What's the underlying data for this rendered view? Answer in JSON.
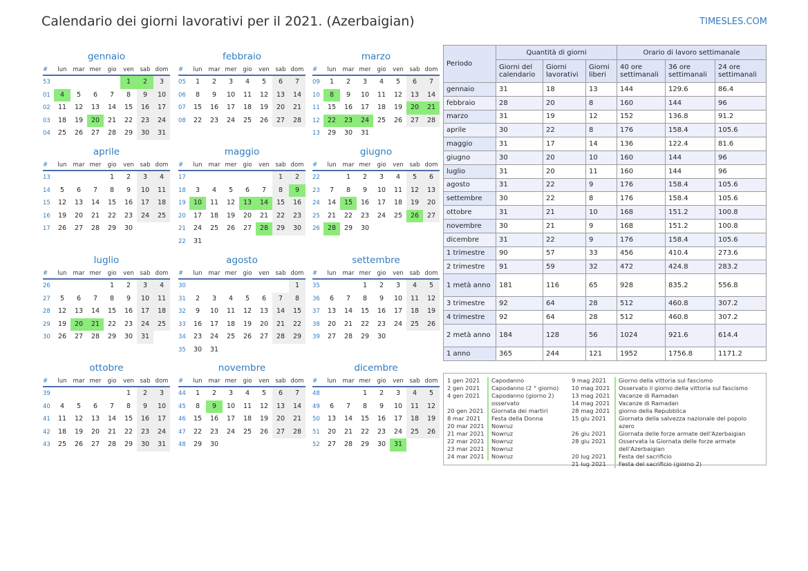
{
  "title": "Calendario dei giorni lavorativi per il 2021. (Azerbaigian)",
  "brand": "TIMESLES.COM",
  "weekdays": [
    "#",
    "lun",
    "mar",
    "mer",
    "gio",
    "ven",
    "sab",
    "dom"
  ],
  "months": [
    {
      "name": "gennaio",
      "weeks": [
        {
          "wk": "53",
          "days": [
            "",
            "",
            "",
            "",
            "1",
            "2",
            "3"
          ]
        },
        {
          "wk": "01",
          "days": [
            "4",
            "5",
            "6",
            "7",
            "8",
            "9",
            "10"
          ]
        },
        {
          "wk": "02",
          "days": [
            "11",
            "12",
            "13",
            "14",
            "15",
            "16",
            "17"
          ]
        },
        {
          "wk": "03",
          "days": [
            "18",
            "19",
            "20",
            "21",
            "22",
            "23",
            "24"
          ]
        },
        {
          "wk": "04",
          "days": [
            "25",
            "26",
            "27",
            "28",
            "29",
            "30",
            "31"
          ]
        }
      ],
      "holidays": [
        "1",
        "2",
        "4",
        "20"
      ]
    },
    {
      "name": "febbraio",
      "weeks": [
        {
          "wk": "05",
          "days": [
            "1",
            "2",
            "3",
            "4",
            "5",
            "6",
            "7"
          ]
        },
        {
          "wk": "06",
          "days": [
            "8",
            "9",
            "10",
            "11",
            "12",
            "13",
            "14"
          ]
        },
        {
          "wk": "07",
          "days": [
            "15",
            "16",
            "17",
            "18",
            "19",
            "20",
            "21"
          ]
        },
        {
          "wk": "08",
          "days": [
            "22",
            "23",
            "24",
            "25",
            "26",
            "27",
            "28"
          ]
        }
      ],
      "holidays": []
    },
    {
      "name": "marzo",
      "weeks": [
        {
          "wk": "09",
          "days": [
            "1",
            "2",
            "3",
            "4",
            "5",
            "6",
            "7"
          ]
        },
        {
          "wk": "10",
          "days": [
            "8",
            "9",
            "10",
            "11",
            "12",
            "13",
            "14"
          ]
        },
        {
          "wk": "11",
          "days": [
            "15",
            "16",
            "17",
            "18",
            "19",
            "20",
            "21"
          ]
        },
        {
          "wk": "12",
          "days": [
            "22",
            "23",
            "24",
            "25",
            "26",
            "27",
            "28"
          ]
        },
        {
          "wk": "13",
          "days": [
            "29",
            "30",
            "31",
            "",
            "",
            "",
            ""
          ]
        }
      ],
      "holidays": [
        "8",
        "20",
        "21",
        "22",
        "23",
        "24"
      ]
    },
    {
      "name": "aprile",
      "weeks": [
        {
          "wk": "13",
          "days": [
            "",
            "",
            "",
            "1",
            "2",
            "3",
            "4"
          ]
        },
        {
          "wk": "14",
          "days": [
            "5",
            "6",
            "7",
            "8",
            "9",
            "10",
            "11"
          ]
        },
        {
          "wk": "15",
          "days": [
            "12",
            "13",
            "14",
            "15",
            "16",
            "17",
            "18"
          ]
        },
        {
          "wk": "16",
          "days": [
            "19",
            "20",
            "21",
            "22",
            "23",
            "24",
            "25"
          ]
        },
        {
          "wk": "17",
          "days": [
            "26",
            "27",
            "28",
            "29",
            "30",
            "",
            ""
          ]
        }
      ],
      "holidays": []
    },
    {
      "name": "maggio",
      "weeks": [
        {
          "wk": "17",
          "days": [
            "",
            "",
            "",
            "",
            "",
            "1",
            "2"
          ]
        },
        {
          "wk": "18",
          "days": [
            "3",
            "4",
            "5",
            "6",
            "7",
            "8",
            "9"
          ]
        },
        {
          "wk": "19",
          "days": [
            "10",
            "11",
            "12",
            "13",
            "14",
            "15",
            "16"
          ]
        },
        {
          "wk": "20",
          "days": [
            "17",
            "18",
            "19",
            "20",
            "21",
            "22",
            "23"
          ]
        },
        {
          "wk": "21",
          "days": [
            "24",
            "25",
            "26",
            "27",
            "28",
            "29",
            "30"
          ]
        },
        {
          "wk": "22",
          "days": [
            "31",
            "",
            "",
            "",
            "",
            "",
            ""
          ]
        }
      ],
      "holidays": [
        "9",
        "10",
        "13",
        "14",
        "28"
      ]
    },
    {
      "name": "giugno",
      "weeks": [
        {
          "wk": "22",
          "days": [
            "",
            "1",
            "2",
            "3",
            "4",
            "5",
            "6"
          ]
        },
        {
          "wk": "23",
          "days": [
            "7",
            "8",
            "9",
            "10",
            "11",
            "12",
            "13"
          ]
        },
        {
          "wk": "24",
          "days": [
            "14",
            "15",
            "16",
            "17",
            "18",
            "19",
            "20"
          ]
        },
        {
          "wk": "25",
          "days": [
            "21",
            "22",
            "23",
            "24",
            "25",
            "26",
            "27"
          ]
        },
        {
          "wk": "26",
          "days": [
            "28",
            "29",
            "30",
            "",
            "",
            "",
            ""
          ]
        }
      ],
      "holidays": [
        "15",
        "26",
        "28"
      ]
    },
    {
      "name": "luglio",
      "weeks": [
        {
          "wk": "26",
          "days": [
            "",
            "",
            "",
            "1",
            "2",
            "3",
            "4"
          ]
        },
        {
          "wk": "27",
          "days": [
            "5",
            "6",
            "7",
            "8",
            "9",
            "10",
            "11"
          ]
        },
        {
          "wk": "28",
          "days": [
            "12",
            "13",
            "14",
            "15",
            "16",
            "17",
            "18"
          ]
        },
        {
          "wk": "29",
          "days": [
            "19",
            "20",
            "21",
            "22",
            "23",
            "24",
            "25"
          ]
        },
        {
          "wk": "30",
          "days": [
            "26",
            "27",
            "28",
            "29",
            "30",
            "31",
            ""
          ]
        }
      ],
      "holidays": [
        "20",
        "21"
      ]
    },
    {
      "name": "agosto",
      "weeks": [
        {
          "wk": "30",
          "days": [
            "",
            "",
            "",
            "",
            "",
            "",
            "1"
          ]
        },
        {
          "wk": "31",
          "days": [
            "2",
            "3",
            "4",
            "5",
            "6",
            "7",
            "8"
          ]
        },
        {
          "wk": "32",
          "days": [
            "9",
            "10",
            "11",
            "12",
            "13",
            "14",
            "15"
          ]
        },
        {
          "wk": "33",
          "days": [
            "16",
            "17",
            "18",
            "19",
            "20",
            "21",
            "22"
          ]
        },
        {
          "wk": "34",
          "days": [
            "23",
            "24",
            "25",
            "26",
            "27",
            "28",
            "29"
          ]
        },
        {
          "wk": "35",
          "days": [
            "30",
            "31",
            "",
            "",
            "",
            "",
            ""
          ]
        }
      ],
      "holidays": []
    },
    {
      "name": "settembre",
      "weeks": [
        {
          "wk": "35",
          "days": [
            "",
            "",
            "1",
            "2",
            "3",
            "4",
            "5"
          ]
        },
        {
          "wk": "36",
          "days": [
            "6",
            "7",
            "8",
            "9",
            "10",
            "11",
            "12"
          ]
        },
        {
          "wk": "37",
          "days": [
            "13",
            "14",
            "15",
            "16",
            "17",
            "18",
            "19"
          ]
        },
        {
          "wk": "38",
          "days": [
            "20",
            "21",
            "22",
            "23",
            "24",
            "25",
            "26"
          ]
        },
        {
          "wk": "39",
          "days": [
            "27",
            "28",
            "29",
            "30",
            "",
            "",
            ""
          ]
        }
      ],
      "holidays": []
    },
    {
      "name": "ottobre",
      "weeks": [
        {
          "wk": "39",
          "days": [
            "",
            "",
            "",
            "",
            "1",
            "2",
            "3"
          ]
        },
        {
          "wk": "40",
          "days": [
            "4",
            "5",
            "6",
            "7",
            "8",
            "9",
            "10"
          ]
        },
        {
          "wk": "41",
          "days": [
            "11",
            "12",
            "13",
            "14",
            "15",
            "16",
            "17"
          ]
        },
        {
          "wk": "42",
          "days": [
            "18",
            "19",
            "20",
            "21",
            "22",
            "23",
            "24"
          ]
        },
        {
          "wk": "43",
          "days": [
            "25",
            "26",
            "27",
            "28",
            "29",
            "30",
            "31"
          ]
        }
      ],
      "holidays": []
    },
    {
      "name": "novembre",
      "weeks": [
        {
          "wk": "44",
          "days": [
            "1",
            "2",
            "3",
            "4",
            "5",
            "6",
            "7"
          ]
        },
        {
          "wk": "45",
          "days": [
            "8",
            "9",
            "10",
            "11",
            "12",
            "13",
            "14"
          ]
        },
        {
          "wk": "46",
          "days": [
            "15",
            "16",
            "17",
            "18",
            "19",
            "20",
            "21"
          ]
        },
        {
          "wk": "47",
          "days": [
            "22",
            "23",
            "24",
            "25",
            "26",
            "27",
            "28"
          ]
        },
        {
          "wk": "48",
          "days": [
            "29",
            "30",
            "",
            "",
            "",
            "",
            ""
          ]
        }
      ],
      "holidays": [
        "9"
      ]
    },
    {
      "name": "dicembre",
      "weeks": [
        {
          "wk": "48",
          "days": [
            "",
            "",
            "1",
            "2",
            "3",
            "4",
            "5"
          ]
        },
        {
          "wk": "49",
          "days": [
            "6",
            "7",
            "8",
            "9",
            "10",
            "11",
            "12"
          ]
        },
        {
          "wk": "50",
          "days": [
            "13",
            "14",
            "15",
            "16",
            "17",
            "18",
            "19"
          ]
        },
        {
          "wk": "51",
          "days": [
            "20",
            "21",
            "22",
            "23",
            "24",
            "25",
            "26"
          ]
        },
        {
          "wk": "52",
          "days": [
            "27",
            "28",
            "29",
            "30",
            "31",
            "",
            ""
          ]
        }
      ],
      "holidays": [
        "31"
      ]
    }
  ],
  "summary": {
    "head": {
      "period": "Periodo",
      "qty": "Quantità di giorni",
      "hours": "Orario di lavoro settimanale",
      "cols": [
        "Giorni del calendario",
        "Giorni lavorativi",
        "Giorni liberi",
        "40 ore settimanali",
        "36 ore settimanali",
        "24 ore settimanali"
      ]
    },
    "rows": [
      [
        "gennaio",
        "31",
        "18",
        "13",
        "144",
        "129.6",
        "86.4"
      ],
      [
        "febbraio",
        "28",
        "20",
        "8",
        "160",
        "144",
        "96"
      ],
      [
        "marzo",
        "31",
        "19",
        "12",
        "152",
        "136.8",
        "91.2"
      ],
      [
        "aprile",
        "30",
        "22",
        "8",
        "176",
        "158.4",
        "105.6"
      ],
      [
        "maggio",
        "31",
        "17",
        "14",
        "136",
        "122.4",
        "81.6"
      ],
      [
        "giugno",
        "30",
        "20",
        "10",
        "160",
        "144",
        "96"
      ],
      [
        "luglio",
        "31",
        "20",
        "11",
        "160",
        "144",
        "96"
      ],
      [
        "agosto",
        "31",
        "22",
        "9",
        "176",
        "158.4",
        "105.6"
      ],
      [
        "settembre",
        "30",
        "22",
        "8",
        "176",
        "158.4",
        "105.6"
      ],
      [
        "ottobre",
        "31",
        "21",
        "10",
        "168",
        "151.2",
        "100.8"
      ],
      [
        "novembre",
        "30",
        "21",
        "9",
        "168",
        "151.2",
        "100.8"
      ],
      [
        "dicembre",
        "31",
        "22",
        "9",
        "176",
        "158.4",
        "105.6"
      ],
      [
        "1 trimestre",
        "90",
        "57",
        "33",
        "456",
        "410.4",
        "273.6"
      ],
      [
        "2 trimestre",
        "91",
        "59",
        "32",
        "472",
        "424.8",
        "283.2"
      ],
      [
        "1 metà anno",
        "181",
        "116",
        "65",
        "928",
        "835.2",
        "556.8"
      ],
      [
        "3 trimestre",
        "92",
        "64",
        "28",
        "512",
        "460.8",
        "307.2"
      ],
      [
        "4 trimestre",
        "92",
        "64",
        "28",
        "512",
        "460.8",
        "307.2"
      ],
      [
        "2 metà anno",
        "184",
        "128",
        "56",
        "1024",
        "921.6",
        "614.4"
      ],
      [
        "1 anno",
        "365",
        "244",
        "121",
        "1952",
        "1756.8",
        "1171.2"
      ]
    ]
  },
  "holidays_left": [
    {
      "date": "1 gen 2021",
      "name": "Capodanno"
    },
    {
      "date": "2 gen 2021",
      "name": "Capodanno (2 ° giorno)"
    },
    {
      "date": "4 gen 2021",
      "name": "Capodanno (giorno 2) osservato"
    },
    {
      "date": "20 gen 2021",
      "name": "Giornata dei martiri"
    },
    {
      "date": "8 mar 2021",
      "name": "Festa della Donna"
    },
    {
      "date": "20 mar 2021",
      "name": "Nowruz"
    },
    {
      "date": "21 mar 2021",
      "name": "Nowruz"
    },
    {
      "date": "22 mar 2021",
      "name": "Nowruz"
    },
    {
      "date": "23 mar 2021",
      "name": "Nowruz"
    },
    {
      "date": "24 mar 2021",
      "name": "Nowruz"
    }
  ],
  "holidays_right": [
    {
      "date": "9 mag 2021",
      "name": "Giorno della vittoria sul fascismo"
    },
    {
      "date": "10 mag 2021",
      "name": "Osservato il giorno della vittoria sul fascismo"
    },
    {
      "date": "13 mag 2021",
      "name": "Vacanze di Ramadan"
    },
    {
      "date": "14 mag 2021",
      "name": "Vacanze di Ramadan"
    },
    {
      "date": "28 mag 2021",
      "name": "giorno della Repubblica"
    },
    {
      "date": "15 giu 2021",
      "name": "Giornata della salvezza nazionale del popolo azero"
    },
    {
      "date": "26 giu 2021",
      "name": "Giornata delle forze armate dell'Azerbaigian"
    },
    {
      "date": "28 giu 2021",
      "name": "Osservata la Giornata delle forze armate dell'Azerbaigian"
    },
    {
      "date": "20 lug 2021",
      "name": "Festa del sacrificio"
    },
    {
      "date": "21 lug 2021",
      "name": "Festa del sacrificio (giorno 2)"
    }
  ]
}
